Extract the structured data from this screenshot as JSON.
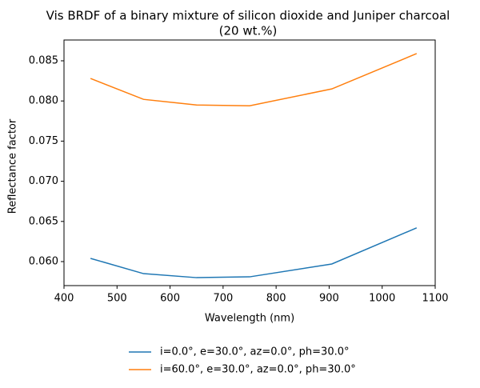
{
  "chart_data": {
    "type": "line",
    "title": [
      "Vis BRDF of a binary mixture of silicon dioxide and Juniper charcoal",
      "(20 wt.%)"
    ],
    "x_label": "Wavelength (nm)",
    "y_label": "Reflectance factor",
    "x": [
      450,
      550,
      650,
      750,
      905,
      1065
    ],
    "series": [
      {
        "name": "i=0.0°, e=30.0°, az=0.0°, ph=30.0°",
        "color": "#1f77b4",
        "values": [
          0.0604,
          0.0585,
          0.058,
          0.0581,
          0.0597,
          0.0642
        ]
      },
      {
        "name": "i=60.0°, e=30.0°, az=0.0°, ph=30.0°",
        "color": "#ff7f0e",
        "values": [
          0.0828,
          0.0802,
          0.0795,
          0.0794,
          0.0815,
          0.0859
        ]
      }
    ],
    "xlim": [
      400,
      1100
    ],
    "xticks": [
      400,
      500,
      600,
      700,
      800,
      900,
      1000,
      1100
    ],
    "ylim": [
      0.05701,
      0.08759
    ],
    "yticks": [
      {
        "value": 0.06,
        "label": "0.060"
      },
      0.065,
      {
        "value": 0.07,
        "label": "0.070"
      },
      0.075,
      {
        "value": 0.08,
        "label": "0.080"
      },
      0.085
    ],
    "grid": false,
    "legend": "bottom"
  }
}
